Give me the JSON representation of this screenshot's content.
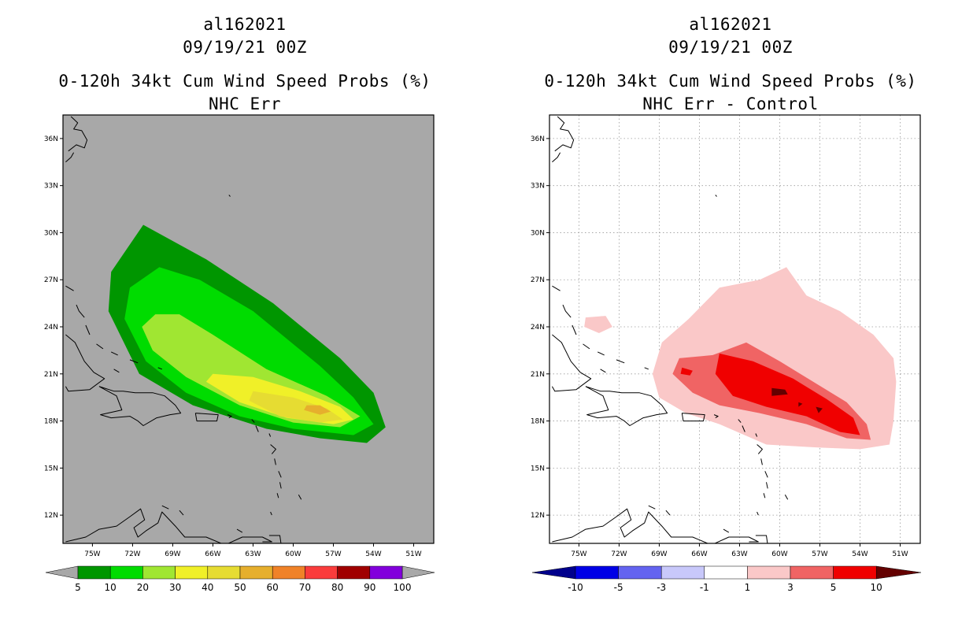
{
  "chart_data": [
    {
      "type": "heatmap",
      "id": "al162021",
      "date": "09/19/21 00Z",
      "title": "0-120h 34kt Cum Wind Speed Probs (%)",
      "subtitle": "NHC Err",
      "x_ticks": [
        "75W",
        "72W",
        "69W",
        "66W",
        "63W",
        "60W",
        "57W",
        "54W",
        "51W"
      ],
      "y_ticks": [
        "36N",
        "33N",
        "30N",
        "27N",
        "24N",
        "21N",
        "18N",
        "15N",
        "12N"
      ],
      "xlim": [
        -77.2,
        -49.5
      ],
      "ylim": [
        10.2,
        37.5
      ],
      "grid": false,
      "background": "#a8a8a8",
      "colorbar": {
        "labels": [
          "5",
          "10",
          "20",
          "30",
          "40",
          "50",
          "60",
          "70",
          "80",
          "90",
          "100"
        ],
        "colors": [
          "#009600",
          "#00dc00",
          "#a0e632",
          "#f0f028",
          "#e6dc32",
          "#e6af2d",
          "#f08228",
          "#fa3c3c",
          "#a00000",
          "#8200dc"
        ],
        "end_colors": [
          "#a8a8a8",
          "#a8a8a8"
        ]
      },
      "contours": [
        {
          "level": "5-10",
          "color": "#009600",
          "points": [
            [
              -71.2,
              30.5
            ],
            [
              -66.5,
              28.3
            ],
            [
              -61.5,
              25.5
            ],
            [
              -56.5,
              22.0
            ],
            [
              -54.0,
              19.8
            ],
            [
              -53.1,
              17.6
            ],
            [
              -54.5,
              16.6
            ],
            [
              -58.0,
              16.9
            ],
            [
              -62.0,
              17.5
            ],
            [
              -67.5,
              19.0
            ],
            [
              -71.5,
              21.0
            ],
            [
              -73.8,
              25.0
            ],
            [
              -73.6,
              27.5
            ]
          ]
        },
        {
          "level": "10-20",
          "color": "#00dc00",
          "points": [
            [
              -70.0,
              27.8
            ],
            [
              -67.0,
              27.0
            ],
            [
              -63.0,
              25.0
            ],
            [
              -58.0,
              21.5
            ],
            [
              -55.5,
              19.5
            ],
            [
              -54.0,
              17.8
            ],
            [
              -55.5,
              17.1
            ],
            [
              -60.0,
              17.5
            ],
            [
              -64.0,
              18.3
            ],
            [
              -68.0,
              19.8
            ],
            [
              -71.0,
              21.8
            ],
            [
              -72.6,
              24.5
            ],
            [
              -72.2,
              26.5
            ]
          ]
        },
        {
          "level": "20-30",
          "color": "#a0e632",
          "points": [
            [
              -70.3,
              24.8
            ],
            [
              -68.5,
              24.8
            ],
            [
              -66.0,
              23.5
            ],
            [
              -62.0,
              21.3
            ],
            [
              -57.5,
              19.6
            ],
            [
              -55.0,
              18.3
            ],
            [
              -56.5,
              17.6
            ],
            [
              -60.0,
              17.9
            ],
            [
              -64.0,
              19.0
            ],
            [
              -68.0,
              20.8
            ],
            [
              -70.5,
              22.5
            ],
            [
              -71.3,
              24.0
            ]
          ]
        },
        {
          "level": "30-40",
          "color": "#f0f028",
          "points": [
            [
              -66.0,
              21.0
            ],
            [
              -63.0,
              20.8
            ],
            [
              -59.5,
              19.9
            ],
            [
              -56.5,
              18.9
            ],
            [
              -55.5,
              18.1
            ],
            [
              -57.0,
              17.8
            ],
            [
              -60.5,
              18.2
            ],
            [
              -64.0,
              19.2
            ],
            [
              -66.5,
              20.5
            ]
          ]
        },
        {
          "level": "40-50",
          "color": "#e6dc32",
          "points": [
            [
              -63.0,
              19.9
            ],
            [
              -60.0,
              19.5
            ],
            [
              -57.5,
              18.8
            ],
            [
              -56.3,
              18.1
            ],
            [
              -58.0,
              17.9
            ],
            [
              -61.0,
              18.3
            ],
            [
              -63.3,
              19.3
            ]
          ]
        },
        {
          "level": "50-60",
          "color": "#e6af2d",
          "points": [
            [
              -59.0,
              19.0
            ],
            [
              -58.0,
              19.0
            ],
            [
              -57.2,
              18.6
            ],
            [
              -58.0,
              18.4
            ],
            [
              -59.2,
              18.7
            ]
          ]
        }
      ]
    },
    {
      "type": "heatmap",
      "id": "al162021",
      "date": "09/19/21 00Z",
      "title": "0-120h 34kt Cum Wind Speed Probs (%)",
      "subtitle": "NHC Err - Control",
      "x_ticks": [
        "75W",
        "72W",
        "69W",
        "66W",
        "63W",
        "60W",
        "57W",
        "54W",
        "51W"
      ],
      "y_ticks": [
        "36N",
        "33N",
        "30N",
        "27N",
        "24N",
        "21N",
        "18N",
        "15N",
        "12N"
      ],
      "xlim": [
        -77.2,
        -49.5
      ],
      "ylim": [
        10.2,
        37.5
      ],
      "grid": true,
      "background": "#ffffff",
      "colorbar": {
        "labels": [
          "-10",
          "-5",
          "-3",
          "-1",
          "1",
          "3",
          "5",
          "10"
        ],
        "colors": [
          "#0000e6",
          "#6464f0",
          "#c8c8fa",
          "#ffffff",
          "#fac8c8",
          "#f06464",
          "#f00000"
        ],
        "end_colors": [
          "#00008c",
          "#640000"
        ]
      },
      "contours": [
        {
          "level": "1-3",
          "color": "#fac8c8",
          "points": [
            [
              -64.5,
              26.5
            ],
            [
              -61.5,
              27.0
            ],
            [
              -59.5,
              27.8
            ],
            [
              -58.0,
              26.0
            ],
            [
              -55.5,
              25.0
            ],
            [
              -53.0,
              23.5
            ],
            [
              -51.5,
              22.0
            ],
            [
              -51.3,
              20.5
            ],
            [
              -51.5,
              18.0
            ],
            [
              -51.8,
              16.5
            ],
            [
              -54.0,
              16.2
            ],
            [
              -57.0,
              16.3
            ],
            [
              -61.0,
              16.5
            ],
            [
              -64.5,
              17.8
            ],
            [
              -67.0,
              18.5
            ],
            [
              -69.0,
              19.5
            ],
            [
              -69.5,
              21.0
            ],
            [
              -68.8,
              23.0
            ],
            [
              -66.8,
              24.5
            ]
          ]
        },
        {
          "level": "1-3",
          "color": "#fac8c8",
          "points": [
            [
              -74.5,
              24.6
            ],
            [
              -73.0,
              24.7
            ],
            [
              -72.5,
              24.0
            ],
            [
              -73.5,
              23.6
            ],
            [
              -74.6,
              24.0
            ]
          ]
        },
        {
          "level": "3-5",
          "color": "#f06464",
          "points": [
            [
              -67.5,
              22.0
            ],
            [
              -65.0,
              22.2
            ],
            [
              -62.5,
              23.0
            ],
            [
              -60.0,
              21.8
            ],
            [
              -57.5,
              20.5
            ],
            [
              -55.0,
              19.2
            ],
            [
              -53.5,
              17.8
            ],
            [
              -53.2,
              16.8
            ],
            [
              -55.0,
              16.9
            ],
            [
              -58.0,
              17.8
            ],
            [
              -61.5,
              18.5
            ],
            [
              -64.5,
              19.0
            ],
            [
              -66.5,
              19.8
            ],
            [
              -68.0,
              21.0
            ]
          ]
        },
        {
          "level": "5-10",
          "color": "#f00000",
          "points": [
            [
              -64.5,
              22.3
            ],
            [
              -62.0,
              21.8
            ],
            [
              -59.0,
              20.7
            ],
            [
              -56.5,
              19.4
            ],
            [
              -54.5,
              18.2
            ],
            [
              -54.0,
              17.1
            ],
            [
              -55.5,
              17.3
            ],
            [
              -58.0,
              18.3
            ],
            [
              -61.0,
              18.9
            ],
            [
              -63.5,
              19.6
            ],
            [
              -64.8,
              21.0
            ]
          ]
        },
        {
          "level": "5-10",
          "color": "#f00000",
          "points": [
            [
              -67.3,
              21.4
            ],
            [
              -66.5,
              21.2
            ],
            [
              -66.7,
              20.9
            ],
            [
              -67.4,
              21.0
            ]
          ]
        },
        {
          "level": ">10",
          "color": "#640000",
          "points": [
            [
              -60.6,
              20.1
            ],
            [
              -59.6,
              20.0
            ],
            [
              -59.4,
              19.7
            ],
            [
              -60.6,
              19.6
            ]
          ]
        },
        {
          "level": ">10",
          "color": "#640000",
          "points": [
            [
              -57.3,
              18.9
            ],
            [
              -56.8,
              18.8
            ],
            [
              -57.1,
              18.5
            ]
          ]
        },
        {
          "level": ">10",
          "color": "#640000",
          "points": [
            [
              -58.6,
              19.2
            ],
            [
              -58.3,
              19.1
            ],
            [
              -58.6,
              18.9
            ]
          ]
        }
      ]
    }
  ]
}
